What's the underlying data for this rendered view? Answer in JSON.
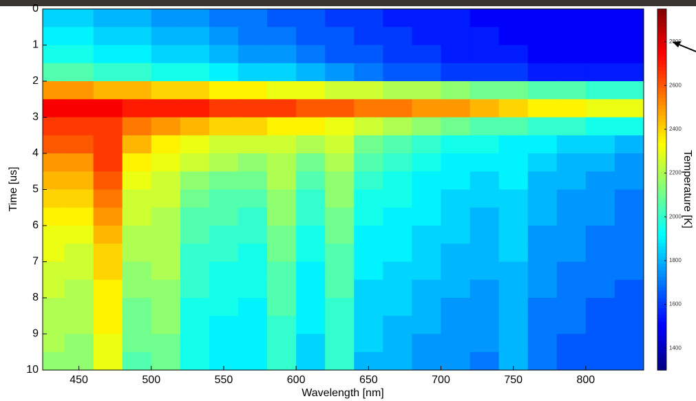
{
  "chart_data": {
    "type": "heatmap",
    "xlabel": "Wavelength [nm]",
    "ylabel": "Time [us]",
    "colorbar_label": "Temperature [K]",
    "colormap": "jet",
    "x": [
      430,
      450,
      470,
      490,
      510,
      530,
      550,
      570,
      590,
      610,
      630,
      650,
      670,
      690,
      710,
      730,
      750,
      770,
      790,
      810,
      830
    ],
    "y": [
      0.25,
      0.75,
      1.25,
      1.75,
      2.25,
      2.75,
      3.25,
      3.75,
      4.25,
      4.75,
      5.25,
      5.75,
      6.25,
      6.75,
      7.25,
      7.75,
      8.25,
      8.75,
      9.25,
      9.75
    ],
    "values": [
      [
        1850,
        1850,
        1800,
        1800,
        1750,
        1750,
        1700,
        1700,
        1650,
        1650,
        1600,
        1600,
        1550,
        1550,
        1550,
        1500,
        1500,
        1500,
        1500,
        1500,
        1500
      ],
      [
        1900,
        1900,
        1850,
        1850,
        1800,
        1800,
        1750,
        1700,
        1700,
        1650,
        1650,
        1600,
        1600,
        1550,
        1550,
        1550,
        1500,
        1500,
        1500,
        1500,
        1500
      ],
      [
        1950,
        1950,
        1900,
        1900,
        1850,
        1850,
        1800,
        1750,
        1750,
        1700,
        1650,
        1650,
        1600,
        1600,
        1550,
        1550,
        1550,
        1500,
        1500,
        1500,
        1500
      ],
      [
        2050,
        2050,
        2000,
        2000,
        1950,
        1950,
        1900,
        1850,
        1850,
        1800,
        1750,
        1700,
        1650,
        1650,
        1600,
        1600,
        1600,
        1550,
        1550,
        1550,
        1550
      ],
      [
        2500,
        2500,
        2450,
        2450,
        2400,
        2400,
        2350,
        2350,
        2300,
        2300,
        2250,
        2250,
        2200,
        2200,
        2150,
        2100,
        2100,
        2050,
        2050,
        2000,
        2000
      ],
      [
        2750,
        2750,
        2750,
        2700,
        2700,
        2700,
        2650,
        2650,
        2650,
        2600,
        2600,
        2550,
        2550,
        2500,
        2500,
        2450,
        2400,
        2350,
        2350,
        2300,
        2300
      ],
      [
        2650,
        2650,
        2650,
        2550,
        2500,
        2450,
        2400,
        2400,
        2350,
        2350,
        2300,
        2250,
        2200,
        2150,
        2100,
        2050,
        2050,
        2000,
        2000,
        1950,
        1950
      ],
      [
        2600,
        2600,
        2650,
        2450,
        2350,
        2300,
        2250,
        2250,
        2250,
        2200,
        2250,
        2100,
        2050,
        2000,
        1950,
        1950,
        1900,
        1900,
        1850,
        1850,
        1800
      ],
      [
        2500,
        2500,
        2650,
        2350,
        2300,
        2250,
        2200,
        2150,
        2200,
        2100,
        2200,
        2050,
        2000,
        1950,
        1900,
        1900,
        1900,
        1850,
        1800,
        1800,
        1750
      ],
      [
        2450,
        2450,
        2600,
        2300,
        2250,
        2150,
        2100,
        2100,
        2200,
        2050,
        2150,
        2000,
        1950,
        1900,
        1900,
        1850,
        1900,
        1800,
        1800,
        1750,
        1750
      ],
      [
        2400,
        2400,
        2550,
        2250,
        2250,
        2100,
        2050,
        2050,
        2150,
        2000,
        2150,
        1950,
        1950,
        1900,
        1850,
        1850,
        1850,
        1800,
        1750,
        1750,
        1700
      ],
      [
        2350,
        2350,
        2500,
        2250,
        2200,
        2050,
        2050,
        2000,
        2150,
        2000,
        2100,
        1950,
        1900,
        1900,
        1850,
        1800,
        1850,
        1800,
        1750,
        1750,
        1700
      ],
      [
        2300,
        2300,
        2450,
        2200,
        2200,
        2050,
        2000,
        2000,
        2100,
        1950,
        2100,
        1900,
        1900,
        1850,
        1850,
        1800,
        1850,
        1750,
        1750,
        1700,
        1700
      ],
      [
        2300,
        2250,
        2400,
        2200,
        2200,
        2000,
        2000,
        1950,
        2100,
        1950,
        2050,
        1900,
        1900,
        1850,
        1800,
        1800,
        1850,
        1750,
        1750,
        1700,
        1700
      ],
      [
        2250,
        2250,
        2400,
        2150,
        2200,
        2000,
        1950,
        1950,
        2050,
        1900,
        2050,
        1900,
        1850,
        1850,
        1800,
        1800,
        1800,
        1750,
        1700,
        1700,
        1700
      ],
      [
        2250,
        2200,
        2350,
        2150,
        2150,
        2000,
        1950,
        1950,
        2050,
        1900,
        2050,
        1850,
        1850,
        1800,
        1800,
        1750,
        1800,
        1750,
        1700,
        1700,
        1650
      ],
      [
        2200,
        2200,
        2350,
        2100,
        2150,
        1950,
        1950,
        1900,
        2050,
        1900,
        2000,
        1850,
        1850,
        1800,
        1750,
        1750,
        1800,
        1700,
        1700,
        1650,
        1650
      ],
      [
        2200,
        2200,
        2350,
        2100,
        2150,
        1950,
        1900,
        1900,
        2000,
        1900,
        2000,
        1850,
        1800,
        1800,
        1750,
        1750,
        1800,
        1700,
        1700,
        1650,
        1650
      ],
      [
        2200,
        2150,
        2300,
        2100,
        2100,
        1950,
        1900,
        1900,
        2000,
        1850,
        2000,
        1850,
        1800,
        1750,
        1750,
        1750,
        1800,
        1700,
        1650,
        1650,
        1650
      ],
      [
        2150,
        2150,
        2300,
        2050,
        2100,
        1950,
        1900,
        1900,
        2000,
        1850,
        2000,
        1800,
        1800,
        1750,
        1750,
        1700,
        1800,
        1700,
        1650,
        1650,
        1650
      ]
    ],
    "xlim": [
      425,
      840
    ],
    "xticks": [
      450,
      500,
      550,
      600,
      650,
      700,
      750,
      800
    ],
    "ylim": [
      0,
      10
    ],
    "yticks": [
      0,
      1,
      2,
      3,
      4,
      5,
      6,
      7,
      8,
      9,
      10
    ],
    "y_inverted": true,
    "clim": [
      1300,
      2950
    ],
    "cticks": [
      1400,
      1600,
      1800,
      2000,
      2200,
      2400,
      2600,
      2800
    ]
  }
}
